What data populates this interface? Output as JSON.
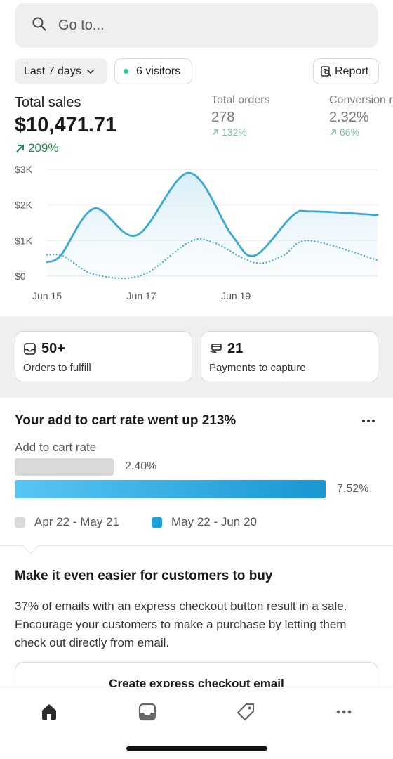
{
  "search": {
    "placeholder": "Go to..."
  },
  "filters": {
    "period_label": "Last 7 days",
    "visitors_label": "6 visitors",
    "report_label": "Report"
  },
  "metrics": {
    "total_sales": {
      "label": "Total sales",
      "value": "$10,471.71",
      "change": "209%"
    },
    "total_orders": {
      "label": "Total orders",
      "value": "278",
      "change": "132%"
    },
    "conversion": {
      "label": "Conversion rate",
      "value": "2.32%",
      "change": "66%"
    }
  },
  "chart_data": {
    "type": "line",
    "x_ticks": [
      "Jun 15",
      "Jun 17",
      "Jun 19"
    ],
    "y_ticks": [
      "$3K",
      "$2K",
      "$1K",
      "$0"
    ],
    "ylim": [
      0,
      3000
    ],
    "grid": true,
    "series": [
      {
        "style": "solid",
        "color": "#3aa8d4",
        "points": [
          [
            0,
            400
          ],
          [
            0.3,
            600
          ],
          [
            1,
            1900
          ],
          [
            1.9,
            1150
          ],
          [
            3,
            2900
          ],
          [
            3.9,
            1180
          ],
          [
            4.4,
            580
          ],
          [
            5.2,
            1700
          ],
          [
            5.6,
            1820
          ],
          [
            7,
            1720
          ]
        ]
      },
      {
        "style": "dotted",
        "color": "#3aa8d4",
        "points": [
          [
            0,
            600
          ],
          [
            0.35,
            560
          ],
          [
            1,
            50
          ],
          [
            2,
            20
          ],
          [
            3,
            950
          ],
          [
            3.5,
            960
          ],
          [
            4.4,
            380
          ],
          [
            5,
            580
          ],
          [
            5.55,
            1000
          ],
          [
            7,
            450
          ]
        ]
      }
    ]
  },
  "tasks": {
    "orders": {
      "value": "50+",
      "label": "Orders to fulfill"
    },
    "payments": {
      "value": "21",
      "label": "Payments to capture"
    }
  },
  "insight": {
    "title": "Your add to cart rate went up 213%",
    "metric_label": "Add to cart rate",
    "previous": {
      "value": "2.40%",
      "fraction": 0.319,
      "period": "Apr 22 - May 21",
      "color": "#d9d9d9"
    },
    "current": {
      "value": "7.52%",
      "fraction": 1.0,
      "period": "May 22 - Jun 20",
      "color": "#1e9fd9"
    }
  },
  "recommendation": {
    "title": "Make it even easier for customers to buy",
    "body": "37% of emails with an express checkout button result in a sale. Encourage your customers to make a purchase by letting them check out directly from email.",
    "button_label": "Create express checkout email"
  },
  "tabbar": {
    "items": [
      {
        "icon": "home-icon",
        "active": true
      },
      {
        "icon": "inbox-icon",
        "active": false
      },
      {
        "icon": "tag-icon",
        "active": false
      },
      {
        "icon": "more-icon",
        "active": false
      }
    ]
  }
}
